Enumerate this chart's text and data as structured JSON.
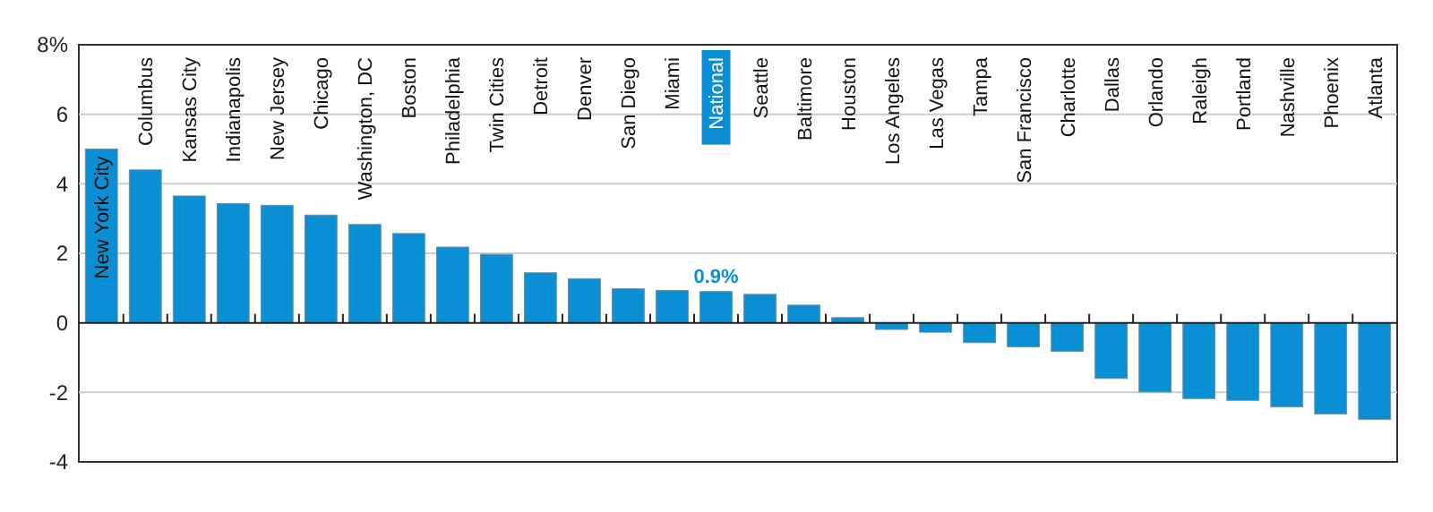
{
  "chart_data": {
    "type": "bar",
    "categories": [
      "New York City",
      "Columbus",
      "Kansas City",
      "Indianapolis",
      "New Jersey",
      "Chicago",
      "Washington, DC",
      "Boston",
      "Philadelphia",
      "Twin Cities",
      "Detroit",
      "Denver",
      "San Diego",
      "Miami",
      "National",
      "Seattle",
      "Baltimore",
      "Houston",
      "Los Angeles",
      "Las Vegas",
      "Tampa",
      "San Francisco",
      "Charlotte",
      "Dallas",
      "Orlando",
      "Raleigh",
      "Portland",
      "Nashville",
      "Phoenix",
      "Atlanta"
    ],
    "values": [
      5.0,
      4.4,
      3.65,
      3.43,
      3.38,
      3.1,
      2.83,
      2.57,
      2.18,
      1.97,
      1.44,
      1.27,
      0.98,
      0.93,
      0.9,
      0.82,
      0.51,
      0.15,
      -0.19,
      -0.27,
      -0.57,
      -0.69,
      -0.82,
      -1.6,
      -1.99,
      -2.18,
      -2.23,
      -2.42,
      -2.62,
      -2.78
    ],
    "value_labels": [
      null,
      null,
      null,
      null,
      null,
      null,
      null,
      null,
      null,
      null,
      null,
      null,
      null,
      null,
      "0.9%",
      null,
      null,
      null,
      null,
      null,
      null,
      null,
      null,
      null,
      null,
      null,
      null,
      null,
      null,
      null
    ],
    "color": "#0a8fd4",
    "ylim": [
      -4,
      8
    ],
    "yticks": [
      -4,
      -2,
      0,
      2,
      4,
      6,
      {
        "value": 8,
        "label": "8%"
      }
    ],
    "grid": "y"
  }
}
